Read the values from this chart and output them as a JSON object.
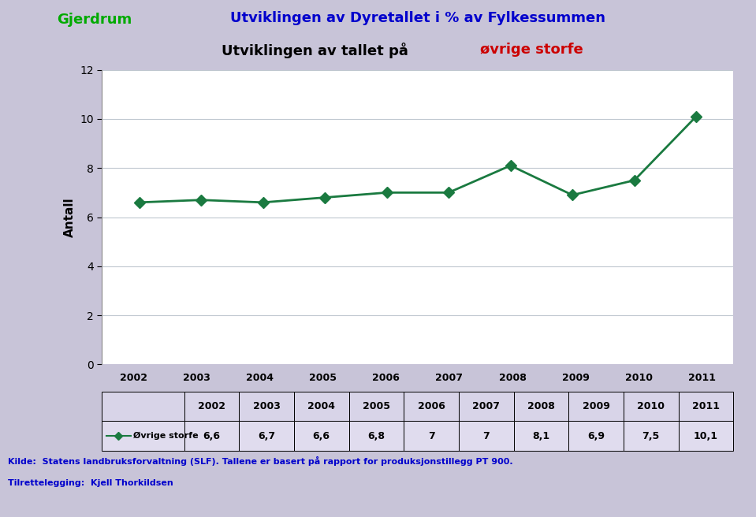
{
  "title_line1": "Utviklingen av Dyretallet i % av Fylkessummen",
  "title_line2_prefix": "Utviklingen av tallet på ",
  "title_line2_highlight": "øvrige storfe",
  "municipality": "Gjerdrum",
  "ylabel": "Antall",
  "years": [
    2002,
    2003,
    2004,
    2005,
    2006,
    2007,
    2008,
    2009,
    2010,
    2011
  ],
  "values": [
    6.6,
    6.7,
    6.6,
    6.8,
    7.0,
    7.0,
    8.1,
    6.9,
    7.5,
    10.1
  ],
  "ylim": [
    0,
    12
  ],
  "yticks": [
    0,
    2,
    4,
    6,
    8,
    10,
    12
  ],
  "line_color": "#1a7a40",
  "marker_color": "#1a7a40",
  "bg_color": "#c8c4d8",
  "plot_bg_color": "#ffffff",
  "grid_color": "#c0c8d0",
  "title1_color": "#0000cc",
  "title2_color": "#000000",
  "highlight_color": "#cc0000",
  "municipality_color": "#00aa00",
  "footer_color": "#0000cc",
  "legend_label": "Øvrige storfe",
  "footer_line1": "Kilde:  Statens landbruksforvaltning (SLF). Tallene er basert på rapport for produksjonstillegg PT 900.",
  "footer_line2": "Tilrettelegging:  Kjell Thorkildsen",
  "table_years": [
    "2002",
    "2003",
    "2004",
    "2005",
    "2006",
    "2007",
    "2008",
    "2009",
    "2010",
    "2011"
  ],
  "table_values": [
    "6,6",
    "6,7",
    "6,6",
    "6,8",
    "7",
    "7",
    "8,1",
    "6,9",
    "7,5",
    "10,1"
  ],
  "table_cell_bg": "#d8d4e8",
  "table_cell_bg2": "#e0dcee"
}
